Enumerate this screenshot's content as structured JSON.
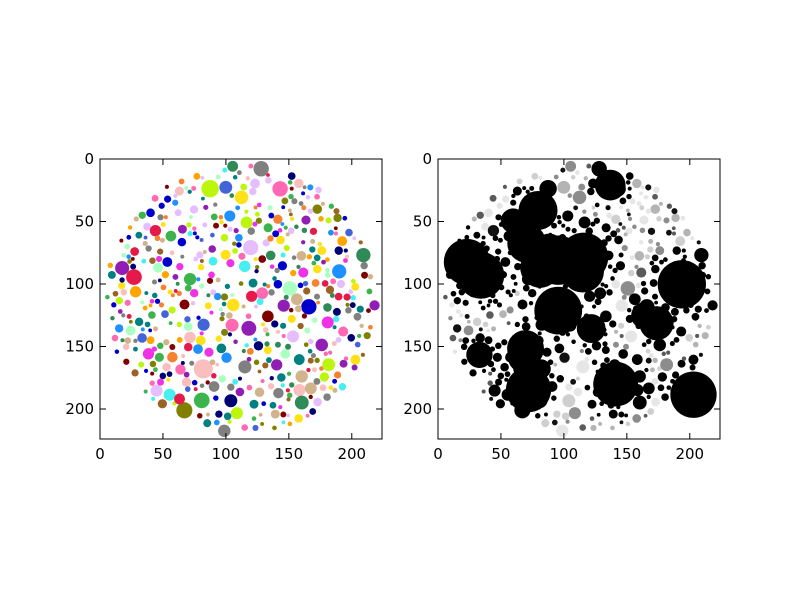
{
  "figure": {
    "background": "#ffffff"
  },
  "chart_data": [
    {
      "type": "image",
      "title": "",
      "xlabel": "",
      "ylabel": "",
      "xlim": [
        0,
        224
      ],
      "ylim": [
        224,
        0
      ],
      "xticks": [
        "0",
        "50",
        "100",
        "150",
        "200"
      ],
      "yticks": [
        "0",
        "50",
        "100",
        "150",
        "200"
      ],
      "xtick_values": [
        0,
        50,
        100,
        150,
        200
      ],
      "ytick_values": [
        0,
        50,
        100,
        150,
        200
      ],
      "content": "circular cluster of randomly sized colored dots",
      "palette": [
        "#e6194b",
        "#3cb44b",
        "#ffe119",
        "#4363d8",
        "#f58231",
        "#911eb4",
        "#46f0f0",
        "#f032e6",
        "#bcf60c",
        "#fabebe",
        "#008080",
        "#e6beff",
        "#9a6324",
        "#800000",
        "#aaffc3",
        "#808000",
        "#000075",
        "#808080",
        "#1e90ff",
        "#ff69b4",
        "#2e8b57",
        "#d2b48c",
        "#ffa500",
        "#0000cd"
      ]
    },
    {
      "type": "image",
      "title": "",
      "xlabel": "",
      "ylabel": "",
      "xlim": [
        0,
        224
      ],
      "ylim": [
        224,
        0
      ],
      "xticks": [
        "0",
        "50",
        "100",
        "150",
        "200"
      ],
      "yticks": [
        "0",
        "50",
        "100",
        "150",
        "200"
      ],
      "xtick_values": [
        0,
        50,
        100,
        150,
        200
      ],
      "ytick_values": [
        0,
        50,
        100,
        150,
        200
      ],
      "content": "grayscale segmentation of the same circular dot cluster",
      "palette": [
        "#000000",
        "#000000",
        "#000000",
        "#111111",
        "#5a5a5a",
        "#8c8c8c",
        "#b4b4b4",
        "#cfcfcf",
        "#e6e6e6"
      ]
    }
  ]
}
